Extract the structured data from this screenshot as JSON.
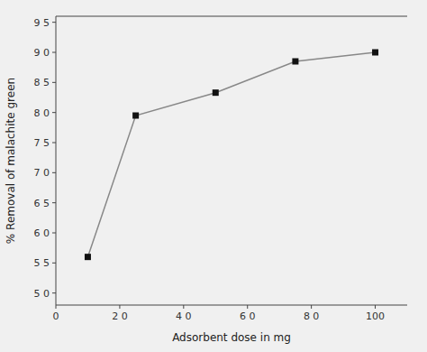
{
  "chart_data": {
    "type": "line",
    "x": [
      10,
      25,
      50,
      75,
      100
    ],
    "values": [
      56,
      79.5,
      83.3,
      88.5,
      90
    ],
    "xlim": [
      0,
      110
    ],
    "ylim": [
      48,
      96
    ],
    "xticks": [
      0,
      {
        "value": 20,
        "label": "2 0"
      },
      {
        "value": 40,
        "label": "4 0"
      },
      {
        "value": 60,
        "label": "6 0"
      },
      {
        "value": 80,
        "label": "8 0"
      },
      100
    ],
    "yticks": [
      {
        "value": 50,
        "label": "5 0"
      },
      {
        "value": 55,
        "label": "5 5"
      },
      {
        "value": 60,
        "label": "6 0"
      },
      {
        "value": 65,
        "label": "6 5"
      },
      {
        "value": 70,
        "label": "7 0"
      },
      {
        "value": 75,
        "label": "7 5"
      },
      {
        "value": 80,
        "label": "8 0"
      },
      {
        "value": 85,
        "label": "8 5"
      },
      {
        "value": 90,
        "label": "9 0"
      },
      {
        "value": 95,
        "label": "9 5"
      }
    ],
    "xlabel": "Adsorbent dose in mg",
    "ylabel": "% Removal of malachite green",
    "color": "#888888",
    "colors": [
      "#111111",
      "#111111",
      "#111111",
      "#111111",
      "#111111"
    ],
    "marker": "square",
    "grid": false
  }
}
